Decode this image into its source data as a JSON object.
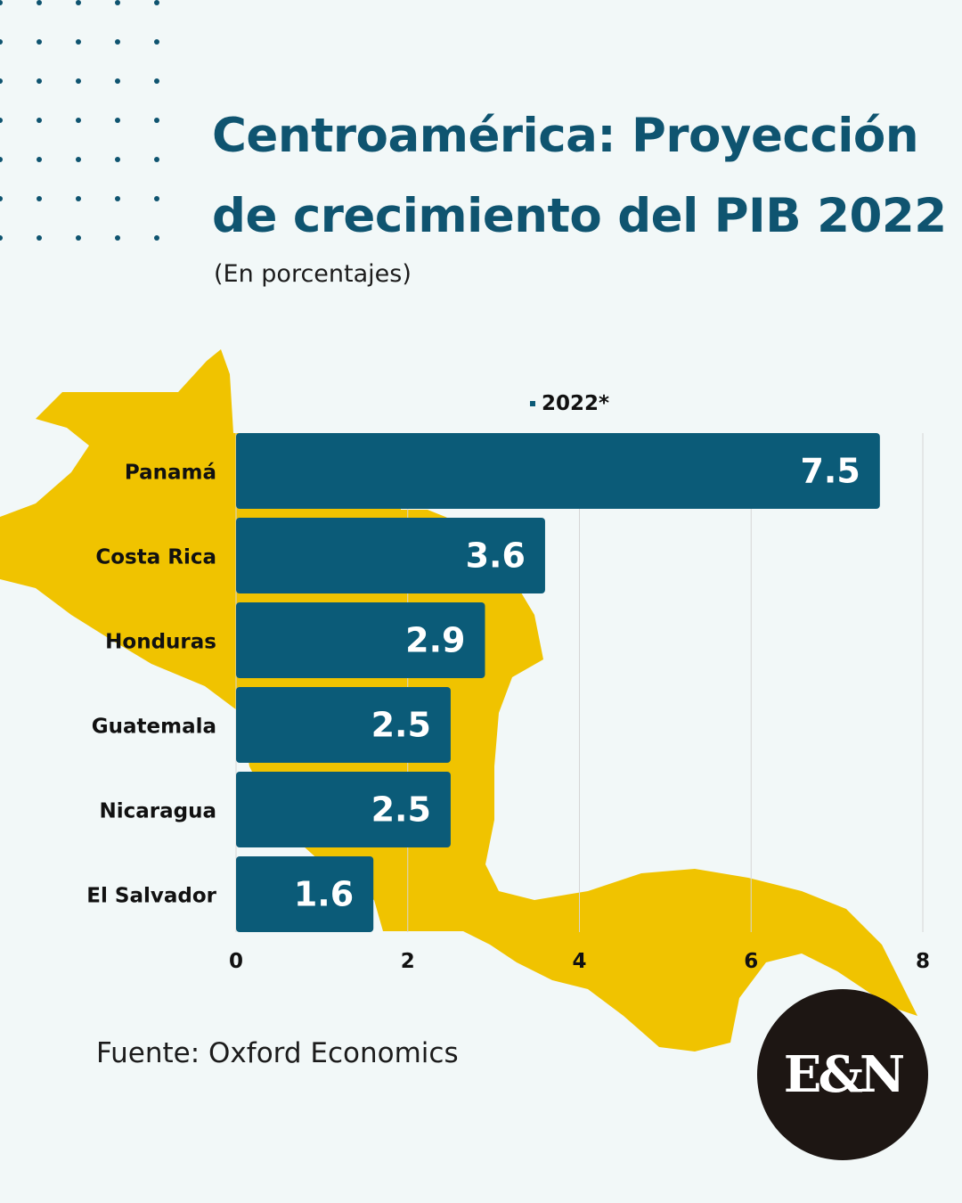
{
  "header": {
    "title_line1": "Centroamérica: Proyección",
    "title_line2": "de crecimiento del PIB 2022",
    "subtitle": "(En porcentajes)"
  },
  "legend": {
    "label": "2022*",
    "color": "#0b5b78"
  },
  "colors": {
    "background": "#f2f8f8",
    "bar": "#0b5b78",
    "title": "#0f5470",
    "map": "#f0c300",
    "dots": "#0f5470",
    "logo_bg": "#1d1613"
  },
  "chart_data": {
    "type": "bar",
    "orientation": "horizontal",
    "categories": [
      "Panamá",
      "Costa Rica",
      "Honduras",
      "Guatemala",
      "Nicaragua",
      "El Salvador"
    ],
    "series": [
      {
        "name": "2022*",
        "values": [
          7.5,
          3.6,
          2.9,
          2.5,
          2.5,
          1.6
        ]
      }
    ],
    "value_labels": [
      "7.5",
      "3.6",
      "2.9",
      "2.5",
      "2.5",
      "1.6"
    ],
    "xlim": [
      0,
      8
    ],
    "xticks": [
      0,
      2,
      4,
      6,
      8
    ],
    "grid": true,
    "legend_position": "top"
  },
  "footer": {
    "source": "Fuente: Oxford Economics"
  },
  "logo": {
    "text": "E&N"
  }
}
